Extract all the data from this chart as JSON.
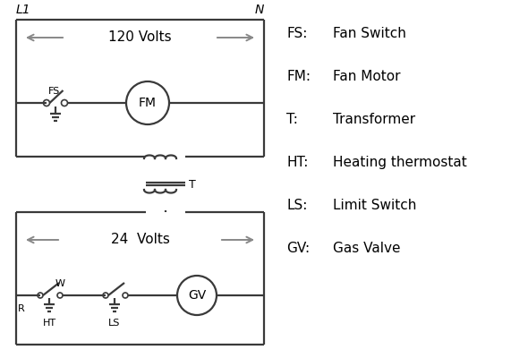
{
  "background_color": "#ffffff",
  "line_color": "#3a3a3a",
  "arrow_color": "#888888",
  "text_color": "#000000",
  "legend": {
    "FS": "Fan Switch",
    "FM": "Fan Motor",
    "T": "Transformer",
    "HT": "Heating thermostat",
    "LS": "Limit Switch",
    "GV": "Gas Valve"
  },
  "volts_120": "120 Volts",
  "volts_24": "24  Volts",
  "L1": "L1",
  "N": "N",
  "lw": 1.6,
  "arrow_lw": 1.4
}
